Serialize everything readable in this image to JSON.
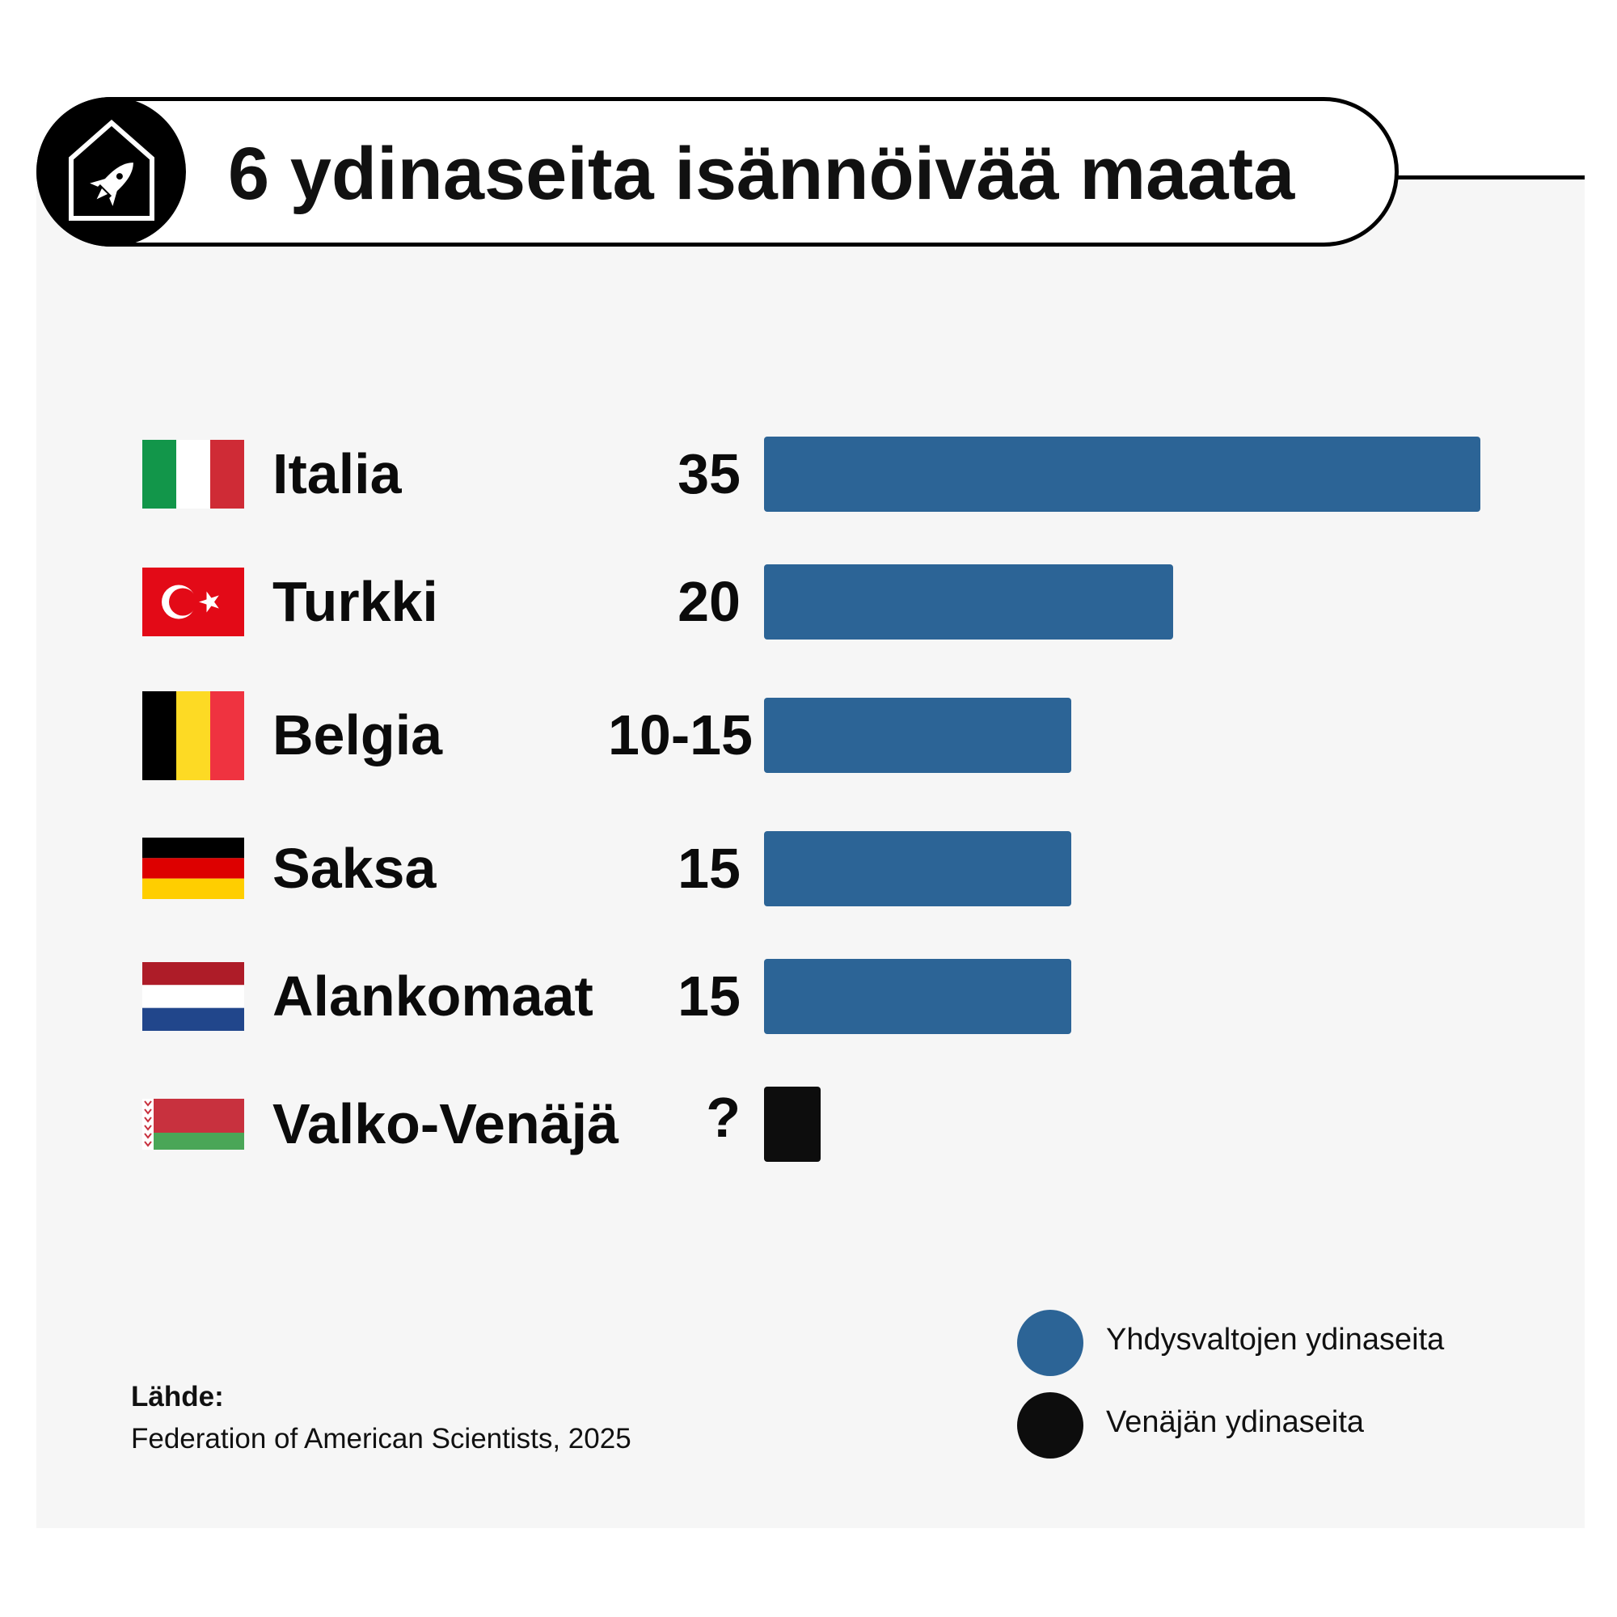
{
  "title": "6 ydinaseita isännöivää maata",
  "badge_icon": "rocket-house-icon",
  "colors": {
    "us": "#2c6496",
    "russia": "#0d0d0d",
    "panel": "#f6f6f6"
  },
  "chart_data": {
    "type": "bar",
    "orientation": "horizontal",
    "categories": [
      "Italia",
      "Turkki",
      "Belgia",
      "Saksa",
      "Alankomaat",
      "Valko-Venäjä"
    ],
    "value_labels": [
      "35",
      "20",
      "10-15",
      "15",
      "15",
      "?"
    ],
    "values": [
      35,
      20,
      15,
      15,
      15,
      null
    ],
    "series_by_row": [
      "us",
      "us",
      "us",
      "us",
      "us",
      "russia"
    ],
    "legend": [
      {
        "key": "us",
        "label": "Yhdysvaltojen ydinaseita"
      },
      {
        "key": "russia",
        "label": "Venäjän ydinaseita"
      }
    ],
    "legend_position": "bottom-right",
    "xlim": [
      0,
      35
    ],
    "grid": false
  },
  "rows": [
    {
      "country": "Italia",
      "value_label": "35",
      "flag": "italy-flag-icon"
    },
    {
      "country": "Turkki",
      "value_label": "20",
      "flag": "turkey-flag-icon"
    },
    {
      "country": "Belgia",
      "value_label": "10-15",
      "flag": "belgium-flag-icon"
    },
    {
      "country": "Saksa",
      "value_label": "15",
      "flag": "germany-flag-icon"
    },
    {
      "country": "Alankomaat",
      "value_label": "15",
      "flag": "netherlands-flag-icon"
    },
    {
      "country": "Valko-Venäjä",
      "value_label": "?",
      "flag": "belarus-flag-icon"
    }
  ],
  "legend": {
    "us_label": "Yhdysvaltojen ydinaseita",
    "russia_label": "Venäjän ydinaseita"
  },
  "source": {
    "title": "Lähde:",
    "text": "Federation of American Scientists, 2025"
  }
}
